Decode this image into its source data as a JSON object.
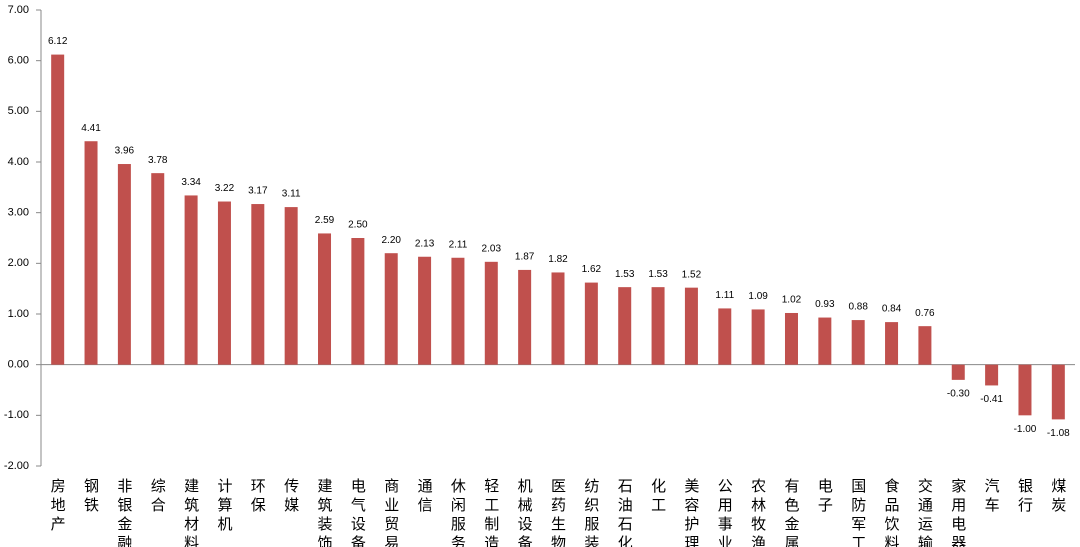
{
  "chart_data": {
    "type": "bar",
    "categories": [
      "房地产",
      "钢铁",
      "非银金融",
      "综合",
      "建筑材料",
      "计算机",
      "环保",
      "传媒",
      "建筑装饰",
      "电气设备",
      "商业贸易",
      "通信",
      "休闲服务",
      "轻工制造",
      "机械设备",
      "医药生物",
      "纺织服装",
      "石油石化",
      "化工",
      "美容护理",
      "公用事业",
      "农林牧渔",
      "有色金属",
      "电子",
      "国防军工",
      "食品饮料",
      "交通运输",
      "家用电器",
      "汽车",
      "银行",
      "煤炭"
    ],
    "values": [
      6.12,
      4.41,
      3.96,
      3.78,
      3.34,
      3.22,
      3.17,
      3.11,
      2.59,
      2.5,
      2.2,
      2.13,
      2.11,
      2.03,
      1.87,
      1.82,
      1.62,
      1.53,
      1.53,
      1.52,
      1.11,
      1.09,
      1.02,
      0.93,
      0.88,
      0.84,
      0.76,
      -0.3,
      -0.41,
      -1.0,
      -1.08
    ],
    "value_labels": [
      "6.12",
      "4.41",
      "3.96",
      "3.78",
      "3.34",
      "3.22",
      "3.17",
      "3.11",
      "2.59",
      "2.50",
      "2.20",
      "2.13",
      "2.11",
      "2.03",
      "1.87",
      "1.82",
      "1.62",
      "1.53",
      "1.53",
      "1.52",
      "1.11",
      "1.09",
      "1.02",
      "0.93",
      "0.88",
      "0.84",
      "0.76",
      "-0.30",
      "-0.41",
      "-1.00",
      "-1.08"
    ],
    "color": "#c0504d",
    "ylim": [
      -2,
      7
    ],
    "yticks": [
      {
        "value": -2,
        "label": "-2.00"
      },
      {
        "value": -1,
        "label": "-1.00"
      },
      {
        "value": 0,
        "label": "0.00"
      },
      {
        "value": 1,
        "label": "1.00"
      },
      {
        "value": 2,
        "label": "2.00"
      },
      {
        "value": 3,
        "label": "3.00"
      },
      {
        "value": 4,
        "label": "4.00"
      },
      {
        "value": 5,
        "label": "5.00"
      },
      {
        "value": 6,
        "label": "6.00"
      },
      {
        "value": 7,
        "label": "7.00"
      }
    ],
    "grid": false
  }
}
